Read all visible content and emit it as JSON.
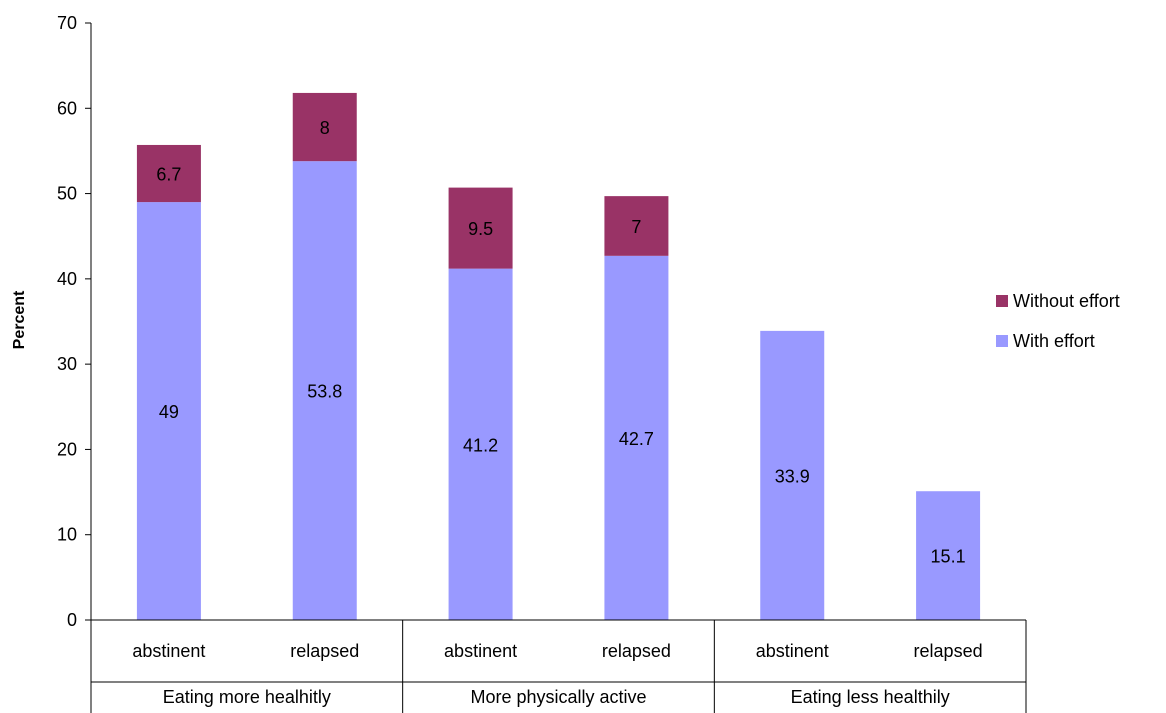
{
  "chart_data": {
    "type": "bar",
    "stacked": true,
    "title": "",
    "xlabel": "",
    "ylabel": "Percent",
    "ylim": [
      0,
      70
    ],
    "yticks": [
      0,
      10,
      20,
      30,
      40,
      50,
      60,
      70
    ],
    "grid": false,
    "legend_position": "right",
    "groups": [
      {
        "label": "Eating more healhitly",
        "categories": [
          "abstinent",
          "relapsed"
        ]
      },
      {
        "label": "More physically active",
        "categories": [
          "abstinent",
          "relapsed"
        ]
      },
      {
        "label": "Eating less healthily",
        "categories": [
          "abstinent",
          "relapsed"
        ]
      }
    ],
    "categories": [
      "abstinent",
      "relapsed",
      "abstinent",
      "relapsed",
      "abstinent",
      "relapsed"
    ],
    "series": [
      {
        "name": "With effort",
        "color": "#9999ff",
        "values": [
          49,
          53.8,
          41.2,
          42.7,
          33.9,
          15.1
        ],
        "labels": [
          "49",
          "53.8",
          "41.2",
          "42.7",
          "33.9",
          "15.1"
        ]
      },
      {
        "name": "Without effort",
        "color": "#993366",
        "values": [
          6.7,
          8,
          9.5,
          7,
          null,
          null
        ],
        "labels": [
          "6.7",
          "8",
          "9.5",
          "7",
          "",
          ""
        ]
      }
    ],
    "legend_order": [
      "Without effort",
      "With effort"
    ]
  }
}
